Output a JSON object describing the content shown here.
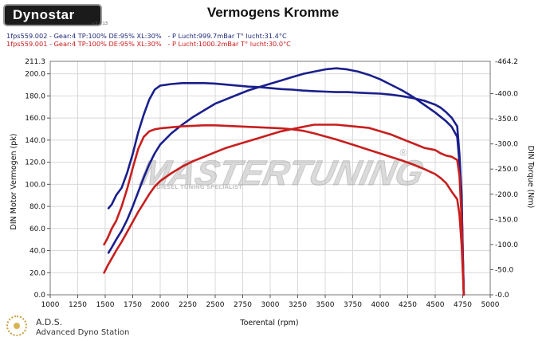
{
  "header": {
    "logo_text": "Dynostar",
    "logo_sub": "v.3.0.13",
    "title": "Vermogens Kromme",
    "run1": "1fps559.002 - Gear:4 TP:100% DE:95% XL:30%   - P Lucht:999.7mBar T° lucht:31.4°C",
    "run2": "1fps559.001 - Gear:4 TP:100% DE:95% XL:30%   - P Lucht:1000.2mBar T° lucht:30.0°C"
  },
  "footer": {
    "title": "A.D.S.",
    "subtitle": "Advanced Dyno Station"
  },
  "watermark": {
    "main": "MASTERTUNING",
    "reg": "®",
    "tagline": "DIESEL TUNING SPECIALIST"
  },
  "chart_data": {
    "type": "line",
    "title": "Vermogens Kromme",
    "xlabel": "Toerental (rpm)",
    "ylabel": "DIN Motor Vermogen (pk)",
    "y2label": "DIN Torque (Nm)",
    "xlim": [
      1000,
      5000
    ],
    "ylim": [
      0,
      211.3
    ],
    "y2lim": [
      0,
      464.2
    ],
    "x_ticks": [
      1000,
      1250,
      1500,
      1750,
      2000,
      2250,
      2500,
      2750,
      3000,
      3250,
      3500,
      3750,
      4000,
      4250,
      4500,
      4750,
      5000
    ],
    "y_ticks": [
      "0.0",
      "20.0",
      "40.0",
      "60.0",
      "80.0",
      "100.0",
      "120.0",
      "140.0",
      "160.0",
      "180.0",
      "200.0"
    ],
    "y_top_label": "211.3",
    "y2_ticks": [
      "0.0",
      "50.0",
      "100.0",
      "150.0",
      "200.0",
      "250.0",
      "300.0",
      "350.0",
      "400.0"
    ],
    "y2_top_label": "464.2",
    "grid": true,
    "colors": {
      "run1": "#1a1f8c",
      "run2": "#c81e1e"
    },
    "series": [
      {
        "run": "run1",
        "kind": "power",
        "axis": "left",
        "x": [
          1530,
          1560,
          1600,
          1650,
          1700,
          1750,
          1800,
          1850,
          1900,
          1950,
          2000,
          2100,
          2200,
          2300,
          2400,
          2500,
          2600,
          2700,
          2800,
          2900,
          3000,
          3100,
          3200,
          3300,
          3400,
          3500,
          3600,
          3700,
          3800,
          3900,
          4000,
          4100,
          4200,
          4300,
          4400,
          4500,
          4550,
          4600,
          4650,
          4700,
          4720,
          4740,
          4750,
          4760
        ],
        "y": [
          38,
          43,
          50,
          58,
          68,
          80,
          93,
          106,
          118,
          128,
          136,
          146,
          154,
          161,
          167,
          173,
          177,
          181,
          185,
          188,
          191,
          194,
          197,
          200,
          202,
          204,
          205,
          204,
          202,
          199,
          195,
          190,
          185,
          179,
          172,
          165,
          161,
          157,
          152,
          143,
          120,
          85,
          40,
          0
        ]
      },
      {
        "run": "run1",
        "kind": "torque",
        "axis": "right",
        "x": [
          1530,
          1560,
          1600,
          1650,
          1700,
          1750,
          1800,
          1850,
          1900,
          1950,
          2000,
          2100,
          2200,
          2300,
          2400,
          2500,
          2600,
          2700,
          2800,
          2900,
          3000,
          3100,
          3200,
          3300,
          3400,
          3500,
          3600,
          3700,
          3800,
          3900,
          4000,
          4100,
          4200,
          4300,
          4400,
          4500,
          4550,
          4600,
          4650,
          4700,
          4720,
          4740,
          4750,
          4760
        ],
        "y": [
          172,
          180,
          198,
          213,
          243,
          280,
          323,
          358,
          388,
          408,
          416,
          419,
          421,
          421,
          421,
          420,
          418,
          416,
          414,
          413,
          411,
          409,
          408,
          406,
          405,
          404,
          403,
          403,
          402,
          401,
          400,
          398,
          395,
          391,
          386,
          378,
          372,
          363,
          352,
          335,
          280,
          200,
          90,
          0
        ]
      },
      {
        "run": "run2",
        "kind": "power",
        "axis": "left",
        "x": [
          1490,
          1520,
          1560,
          1600,
          1650,
          1700,
          1750,
          1800,
          1850,
          1900,
          1950,
          2000,
          2100,
          2200,
          2300,
          2400,
          2500,
          2600,
          2700,
          2800,
          2900,
          3000,
          3100,
          3200,
          3300,
          3400,
          3500,
          3600,
          3700,
          3800,
          3900,
          4000,
          4100,
          4200,
          4300,
          4400,
          4500,
          4550,
          4600,
          4650,
          4700,
          4720,
          4740,
          4750,
          4760
        ],
        "y": [
          20,
          26,
          33,
          40,
          48,
          57,
          66,
          75,
          83,
          91,
          98,
          103,
          110,
          116,
          121,
          125,
          129,
          133,
          136,
          139,
          142,
          145,
          148,
          150,
          152,
          154,
          154,
          154,
          153,
          152,
          151,
          148,
          145,
          141,
          137,
          133,
          131,
          128,
          126,
          125,
          122,
          108,
          70,
          30,
          0
        ]
      },
      {
        "run": "run2",
        "kind": "torque",
        "axis": "right",
        "x": [
          1490,
          1520,
          1560,
          1600,
          1650,
          1700,
          1750,
          1800,
          1850,
          1900,
          1950,
          2000,
          2100,
          2200,
          2300,
          2400,
          2500,
          2600,
          2700,
          2800,
          2900,
          3000,
          3100,
          3200,
          3300,
          3400,
          3500,
          3600,
          3700,
          3800,
          3900,
          4000,
          4100,
          4200,
          4300,
          4400,
          4500,
          4550,
          4600,
          4650,
          4700,
          4720,
          4740,
          4750,
          4760
        ],
        "y": [
          100,
          112,
          132,
          147,
          176,
          211,
          252,
          290,
          314,
          325,
          329,
          331,
          333,
          335,
          336,
          337,
          337,
          336,
          335,
          334,
          333,
          332,
          331,
          329,
          326,
          321,
          315,
          309,
          302,
          295,
          288,
          281,
          274,
          267,
          259,
          250,
          240,
          232,
          222,
          205,
          190,
          160,
          100,
          50,
          0
        ]
      }
    ]
  }
}
